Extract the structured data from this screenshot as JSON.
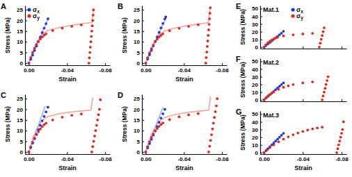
{
  "chart_data": [
    {
      "type": "scatter",
      "title": "A",
      "xlabel": "Strain",
      "ylabel": "Stress (MPa)",
      "xlim": [
        0.004,
        -0.085
      ],
      "xticks": [
        {
          "value": 0,
          "label": "0.00"
        },
        {
          "value": -0.04,
          "label": "-0.04"
        },
        {
          "value": -0.08,
          "label": "-0.08"
        }
      ],
      "ylim": [
        -1,
        27
      ],
      "yticks": [
        0,
        5,
        10,
        15,
        20,
        25
      ],
      "legend": "upper left",
      "series": [
        {
          "name": "σx",
          "type": "scatter",
          "marker": "circle",
          "color": "#1a35e8",
          "x": [
            0,
            -0.002,
            -0.004,
            -0.006,
            -0.008,
            -0.01,
            -0.012,
            -0.014,
            -0.016,
            -0.018,
            -0.02
          ],
          "values": [
            0,
            1.8,
            3.8,
            5.9,
            8,
            10.1,
            12.2,
            14.3,
            16.4,
            18.5,
            20.8
          ]
        },
        {
          "name": "σy",
          "type": "scatter",
          "marker": "circle",
          "color": "#e8231a",
          "x": [
            0,
            -0.002,
            -0.004,
            -0.006,
            -0.008,
            -0.01,
            -0.012,
            -0.014,
            -0.016,
            -0.018,
            -0.025,
            -0.035,
            -0.045,
            -0.055,
            -0.063,
            -0.0635,
            -0.064,
            -0.0645,
            -0.065,
            -0.0655,
            -0.066,
            -0.0665,
            -0.067,
            -0.0674,
            -0.0678
          ],
          "values": [
            0,
            2.6,
            5,
            7,
            8.7,
            10.1,
            11.3,
            12.3,
            13.1,
            13.7,
            15.3,
            16.4,
            17.2,
            17.9,
            0,
            2.5,
            5,
            7.5,
            10,
            12.5,
            15,
            17.5,
            20,
            22.5,
            25
          ]
        },
        {
          "type": "line",
          "line_style": "solid",
          "color": "#f3a59e",
          "x": [
            0,
            -0.004,
            -0.008,
            -0.012,
            -0.016,
            -0.02,
            -0.03,
            -0.04,
            -0.05,
            -0.06,
            -0.066,
            -0.0665,
            -0.067,
            -0.0675,
            -0.068
          ],
          "values": [
            0,
            5.5,
            9.5,
            12.3,
            14.2,
            15.3,
            16.5,
            17.4,
            18.1,
            18.7,
            19,
            20.5,
            22,
            23.5,
            25.5
          ]
        },
        {
          "type": "line",
          "line_style": "solid",
          "color": "#9fb0f2",
          "x": [
            0,
            -0.021
          ],
          "values": [
            0,
            21.5
          ]
        }
      ]
    },
    {
      "type": "scatter",
      "title": "B",
      "xlabel": "Strain",
      "ylabel": "Stress (MPa)",
      "xlim": [
        0.004,
        -0.085
      ],
      "xticks": [
        {
          "value": 0,
          "label": "0.00"
        },
        {
          "value": -0.04,
          "label": "-0.04"
        },
        {
          "value": -0.08,
          "label": "-0.08"
        }
      ],
      "ylim": [
        -1,
        27
      ],
      "yticks": [
        0,
        5,
        10,
        15,
        20,
        25
      ],
      "series": [
        {
          "type": "scatter",
          "marker": "circle",
          "color": "#1a35e8",
          "x": [
            0,
            -0.002,
            -0.004,
            -0.006,
            -0.008,
            -0.01,
            -0.012,
            -0.014,
            -0.016,
            -0.018,
            -0.02,
            -0.021
          ],
          "values": [
            0,
            1.9,
            3.9,
            6,
            8.1,
            10.2,
            12.3,
            14.4,
            16.5,
            18.6,
            20.7,
            21.7
          ]
        },
        {
          "type": "scatter",
          "marker": "circle",
          "color": "#e8231a",
          "x": [
            0,
            -0.002,
            -0.004,
            -0.006,
            -0.008,
            -0.01,
            -0.012,
            -0.014,
            -0.016,
            -0.018,
            -0.025,
            -0.035,
            -0.045,
            -0.055,
            -0.063,
            -0.0635,
            -0.064,
            -0.0645,
            -0.065,
            -0.0655,
            -0.066,
            -0.0665,
            -0.067,
            -0.0674,
            -0.0678
          ],
          "values": [
            0,
            2.5,
            4.8,
            6.8,
            8.5,
            10,
            11.2,
            12.2,
            13,
            13.7,
            15.2,
            16.3,
            17.2,
            18,
            0,
            2.6,
            5.2,
            7.8,
            10.4,
            13,
            15.6,
            18.2,
            20.8,
            23.4,
            26
          ]
        },
        {
          "type": "line",
          "line_style": "solid",
          "color": "#f3a59e",
          "x": [
            0,
            -0.004,
            -0.008,
            -0.012,
            -0.016,
            -0.02,
            -0.03,
            -0.04,
            -0.05,
            -0.06,
            -0.0655,
            -0.066,
            -0.0665,
            -0.067,
            -0.0675
          ],
          "values": [
            0,
            5,
            9,
            12,
            14,
            15.1,
            16.4,
            17.3,
            18,
            18.6,
            18.9,
            20.6,
            22.3,
            24,
            25.7
          ]
        },
        {
          "type": "line",
          "line_style": "solid",
          "color": "#9fb0f2",
          "x": [
            0,
            -0.022
          ],
          "values": [
            0,
            22
          ]
        }
      ]
    },
    {
      "type": "scatter",
      "title": "C",
      "xlabel": "Strain",
      "ylabel": "Stress (MPa)",
      "xlim": [
        0.004,
        -0.085
      ],
      "xticks": [
        {
          "value": 0,
          "label": "0.00"
        },
        {
          "value": -0.04,
          "label": "-0.04"
        },
        {
          "value": -0.08,
          "label": "-0.08"
        }
      ],
      "ylim": [
        -1,
        27
      ],
      "yticks": [
        0,
        5,
        10,
        15,
        20,
        25
      ],
      "series": [
        {
          "type": "scatter",
          "marker": "circle",
          "color": "#1a35e8",
          "x": [
            0,
            -0.002,
            -0.004,
            -0.006,
            -0.008,
            -0.01,
            -0.012,
            -0.014,
            -0.016,
            -0.018,
            -0.02
          ],
          "values": [
            0,
            2,
            4.1,
            6.2,
            8.3,
            10.4,
            12.5,
            14.6,
            16.7,
            18.8,
            21
          ]
        },
        {
          "type": "scatter",
          "marker": "circle",
          "color": "#e8231a",
          "x": [
            0,
            -0.002,
            -0.004,
            -0.006,
            -0.008,
            -0.01,
            -0.012,
            -0.014,
            -0.016,
            -0.018,
            -0.025,
            -0.035,
            -0.045,
            -0.055,
            -0.066,
            -0.067,
            -0.068,
            -0.069,
            -0.07,
            -0.071,
            -0.072,
            -0.073,
            -0.074,
            -0.075
          ],
          "values": [
            0,
            2.4,
            4.6,
            6.5,
            8.1,
            9.5,
            10.8,
            11.9,
            12.8,
            13.5,
            15,
            16.3,
            17.2,
            17.8,
            0,
            2.5,
            5,
            7.5,
            10,
            12.5,
            15,
            17.5,
            20,
            24.5
          ]
        },
        {
          "type": "line",
          "line_style": "solid",
          "color": "#f3a59e",
          "x": [
            0,
            -0.004,
            -0.008,
            -0.012,
            -0.016,
            -0.02,
            -0.03,
            -0.04,
            -0.05,
            -0.06,
            -0.065,
            -0.0655,
            -0.066,
            -0.0665,
            -0.067
          ],
          "values": [
            0,
            6.5,
            10.5,
            13.5,
            15.5,
            16.6,
            17.8,
            18.5,
            19,
            19.4,
            19.6,
            21,
            22.5,
            24,
            25.5
          ]
        },
        {
          "type": "line",
          "line_style": "solid",
          "color": "#9fb0f2",
          "x": [
            0,
            -0.017
          ],
          "values": [
            0,
            21.5
          ]
        }
      ]
    },
    {
      "type": "scatter",
      "title": "D",
      "xlabel": "Strain",
      "ylabel": "Stress (MPa)",
      "xlim": [
        0.004,
        -0.085
      ],
      "xticks": [
        {
          "value": 0,
          "label": "0.00"
        },
        {
          "value": -0.04,
          "label": "-0.04"
        },
        {
          "value": -0.08,
          "label": "-0.08"
        }
      ],
      "ylim": [
        -1,
        27
      ],
      "yticks": [
        0,
        5,
        10,
        15,
        20,
        25
      ],
      "series": [
        {
          "type": "scatter",
          "marker": "circle",
          "color": "#1a35e8",
          "x": [
            0,
            -0.002,
            -0.004,
            -0.006,
            -0.008,
            -0.01,
            -0.012,
            -0.014,
            -0.016,
            -0.018,
            -0.02
          ],
          "values": [
            0,
            1.9,
            3.9,
            5.9,
            7.9,
            9.9,
            11.9,
            13.9,
            15.9,
            17.9,
            20
          ]
        },
        {
          "type": "scatter",
          "marker": "circle",
          "color": "#e8231a",
          "x": [
            0,
            -0.002,
            -0.004,
            -0.006,
            -0.008,
            -0.01,
            -0.012,
            -0.014,
            -0.016,
            -0.018,
            -0.025,
            -0.035,
            -0.045,
            -0.055,
            -0.066,
            -0.067,
            -0.068,
            -0.069,
            -0.07,
            -0.071,
            -0.072,
            -0.073,
            -0.074,
            -0.075
          ],
          "values": [
            0,
            2.5,
            4.8,
            6.8,
            8.4,
            9.8,
            11,
            12,
            12.9,
            13.6,
            15.2,
            16.5,
            17.4,
            18,
            0,
            2.7,
            5.4,
            8.1,
            10.8,
            13.5,
            16.2,
            18.9,
            21.6,
            25
          ]
        },
        {
          "type": "line",
          "line_style": "solid",
          "color": "#f3a59e",
          "x": [
            0,
            -0.004,
            -0.008,
            -0.012,
            -0.016,
            -0.02,
            -0.03,
            -0.04,
            -0.05,
            -0.06,
            -0.066,
            -0.0665,
            -0.067,
            -0.0675,
            -0.068
          ],
          "values": [
            0,
            6,
            10,
            13,
            15,
            16.2,
            17.5,
            18.3,
            18.9,
            19.3,
            19.6,
            21.2,
            22.8,
            24.4,
            26
          ]
        },
        {
          "type": "line",
          "line_style": "solid",
          "color": "#9fb0f2",
          "x": [
            0,
            -0.018
          ],
          "values": [
            0,
            21
          ]
        }
      ]
    },
    {
      "type": "scatter",
      "title": "E",
      "annotation": "Mat.1",
      "ylabel": "Stress (MPa)",
      "tick_labels": "y",
      "xlim": [
        0.004,
        -0.085
      ],
      "xticks": [
        0,
        -0.04,
        -0.08
      ],
      "ylim": [
        -2,
        54
      ],
      "yticks": [
        0,
        10,
        20,
        30,
        40,
        50
      ],
      "legend": "upper center",
      "series": [
        {
          "name": "σx",
          "type": "scatter",
          "marker": "circle",
          "color": "#1a35e8",
          "x": [
            0,
            -0.002,
            -0.004,
            -0.006,
            -0.008,
            -0.01,
            -0.012,
            -0.014,
            -0.016,
            -0.018,
            -0.02
          ],
          "values": [
            0,
            2,
            4,
            6,
            8,
            10,
            12,
            14,
            16,
            18,
            20.5
          ]
        },
        {
          "name": "σy",
          "type": "scatter",
          "marker": "circle",
          "color": "#e8231a",
          "x": [
            0,
            -0.002,
            -0.004,
            -0.006,
            -0.008,
            -0.01,
            -0.012,
            -0.014,
            -0.02,
            -0.03,
            -0.04,
            -0.05,
            -0.057,
            -0.058,
            -0.059,
            -0.06,
            -0.061,
            -0.062
          ],
          "values": [
            0,
            3,
            5.5,
            7.5,
            9.2,
            10.6,
            11.8,
            12.8,
            14.5,
            16,
            17,
            17.8,
            0,
            5,
            10,
            15,
            20,
            25
          ]
        }
      ]
    },
    {
      "type": "scatter",
      "title": "F",
      "annotation": "Mat.2",
      "ylabel": "Stress (MPa)",
      "tick_labels": "y",
      "xlim": [
        0.004,
        -0.085
      ],
      "xticks": [
        0,
        -0.04,
        -0.08
      ],
      "ylim": [
        -2,
        54
      ],
      "yticks": [
        0,
        10,
        20,
        30,
        40,
        50
      ],
      "series": [
        {
          "type": "scatter",
          "marker": "circle",
          "color": "#1a35e8",
          "x": [
            0,
            -0.002,
            -0.004,
            -0.006,
            -0.008,
            -0.01,
            -0.012,
            -0.014,
            -0.016,
            -0.018,
            -0.02
          ],
          "values": [
            0,
            2.2,
            4.4,
            6.6,
            8.8,
            11,
            13.2,
            15.4,
            17.6,
            19.8,
            22
          ]
        },
        {
          "type": "scatter",
          "marker": "circle",
          "color": "#e8231a",
          "x": [
            0,
            -0.002,
            -0.004,
            -0.006,
            -0.008,
            -0.01,
            -0.015,
            -0.02,
            -0.025,
            -0.03,
            -0.04,
            -0.05,
            -0.06,
            -0.061,
            -0.062,
            -0.063,
            -0.064,
            -0.065,
            -0.066
          ],
          "values": [
            0,
            2.5,
            5,
            7,
            8.8,
            10.5,
            13.8,
            16.3,
            18.2,
            19.8,
            22,
            23.2,
            0,
            5,
            10,
            15,
            20,
            25,
            30
          ]
        }
      ]
    },
    {
      "type": "scatter",
      "title": "G",
      "annotation": "Mat.3",
      "xlabel": "Strain",
      "ylabel": "Stress (MPa)",
      "xlim": [
        0.004,
        -0.085
      ],
      "xticks": [
        {
          "value": 0,
          "label": "0.00"
        },
        {
          "value": -0.04,
          "label": "-0.04"
        },
        {
          "value": -0.08,
          "label": "-0.08"
        }
      ],
      "ylim": [
        -2,
        54
      ],
      "yticks": [
        0,
        10,
        20,
        30,
        40,
        50
      ],
      "series": [
        {
          "type": "scatter",
          "marker": "circle",
          "color": "#1a35e8",
          "x": [
            0,
            -0.002,
            -0.004,
            -0.006,
            -0.008,
            -0.01,
            -0.012,
            -0.014,
            -0.016,
            -0.018,
            -0.02
          ],
          "values": [
            0,
            2.5,
            5,
            7.5,
            10,
            12.5,
            15,
            17.5,
            20,
            22.5,
            25
          ]
        },
        {
          "type": "scatter",
          "marker": "circle",
          "color": "#e8231a",
          "x": [
            0,
            -0.003,
            -0.006,
            -0.01,
            -0.015,
            -0.02,
            -0.025,
            -0.03,
            -0.035,
            -0.04,
            -0.045,
            -0.05,
            -0.055,
            -0.06,
            -0.075,
            -0.076,
            -0.077,
            -0.078,
            -0.079,
            -0.08,
            -0.081,
            -0.082
          ],
          "values": [
            0,
            3.5,
            6.5,
            10,
            14,
            17.5,
            20.5,
            23.2,
            25.5,
            27.5,
            29.3,
            30.8,
            32,
            33,
            0,
            5,
            10,
            15,
            20,
            25,
            30,
            40
          ]
        }
      ]
    }
  ]
}
